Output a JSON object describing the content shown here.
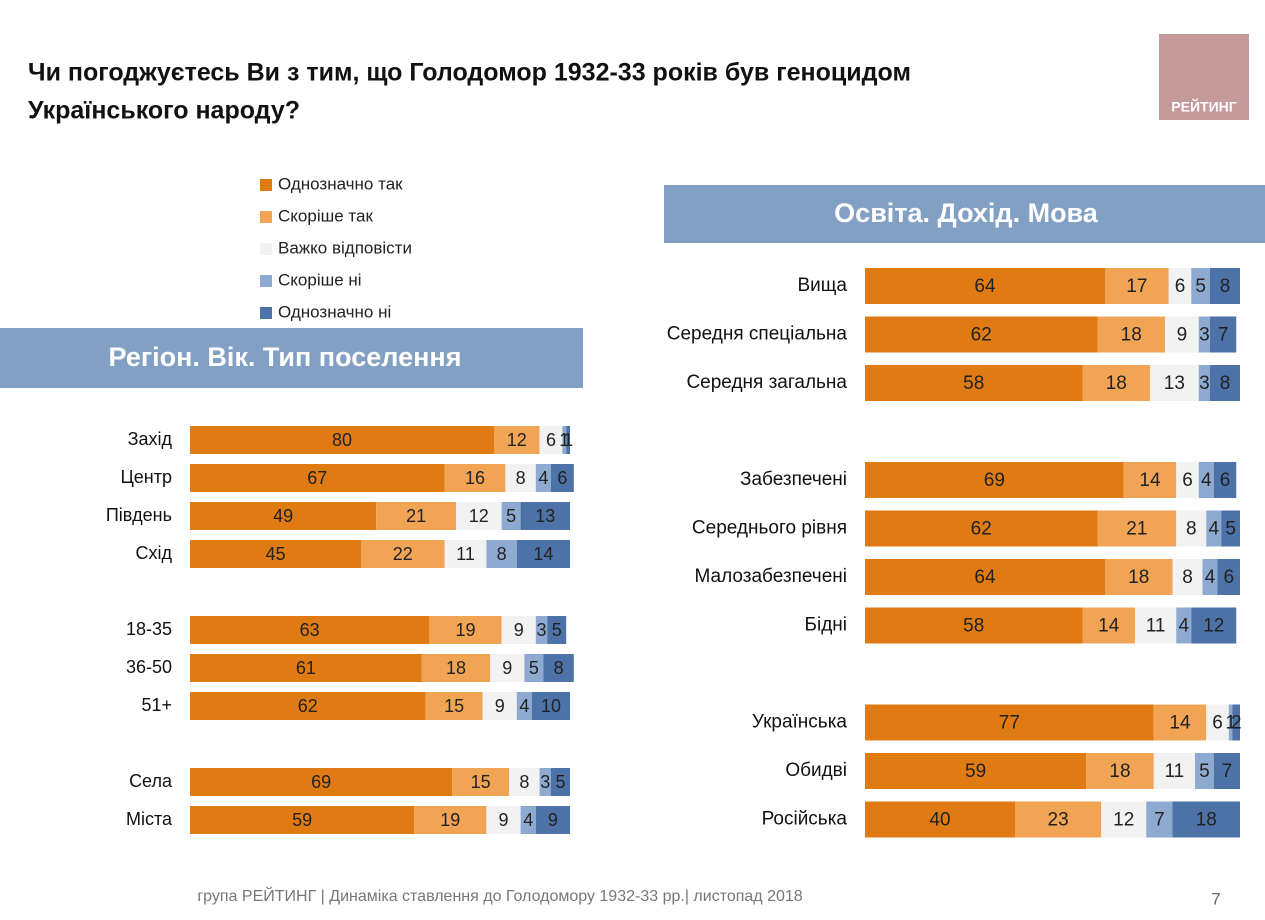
{
  "title": "Чи погоджуєтесь Ви з тим, що Голодомор 1932-33 років був геноцидом",
  "title_line2": "Українського народу?",
  "logo": "РЕЙТИНГ",
  "footer": "група РЕЙТИНГ  |  Динаміка ставлення до Голодомору 1932-33 рр.|  листопад  2018",
  "page_number": "7",
  "chart_data": [
    {
      "type": "stacked-bar-horizontal",
      "title": "Регіон. Вік. Тип поселення",
      "xlim": [
        0,
        100
      ],
      "categories": [
        "Захід",
        "Центр",
        "Південь",
        "Схід",
        null,
        "18-35",
        "36-50",
        "51+",
        null,
        "Села",
        "Міста"
      ],
      "series": [
        {
          "name": "Однозначно так",
          "color": "#e07b14",
          "values": [
            80,
            67,
            49,
            45,
            null,
            63,
            61,
            62,
            null,
            69,
            59
          ]
        },
        {
          "name": "Скоріше так",
          "color": "#f2a455",
          "values": [
            12,
            16,
            21,
            22,
            null,
            19,
            18,
            15,
            null,
            15,
            19
          ]
        },
        {
          "name": "Важко відповісти",
          "color": "#f2f2f2",
          "values": [
            6,
            8,
            12,
            11,
            null,
            9,
            9,
            9,
            null,
            8,
            9
          ]
        },
        {
          "name": "Скоріше ні",
          "color": "#8eaad0",
          "values": [
            1,
            4,
            5,
            8,
            null,
            3,
            5,
            4,
            null,
            3,
            4
          ]
        },
        {
          "name": "Однозначно ні",
          "color": "#4c72a8",
          "values": [
            1,
            6,
            13,
            14,
            null,
            5,
            8,
            10,
            null,
            5,
            9
          ]
        }
      ]
    },
    {
      "type": "stacked-bar-horizontal",
      "title": "Освіта. Дохід. Мова",
      "xlim": [
        0,
        100
      ],
      "categories": [
        "Вища",
        "Середня спеціальна",
        "Середня загальна",
        null,
        "Забезпечені",
        "Середнього рівня",
        "Малозабезпечені",
        "Бідні",
        null,
        "Українська",
        "Обидві",
        "Російська"
      ],
      "series": [
        {
          "color": "#e07b14",
          "values": [
            64,
            62,
            58,
            null,
            69,
            62,
            64,
            58,
            null,
            77,
            59,
            40
          ]
        },
        {
          "color": "#f2a455",
          "values": [
            17,
            18,
            18,
            null,
            14,
            21,
            18,
            14,
            null,
            14,
            18,
            23
          ]
        },
        {
          "color": "#f2f2f2",
          "values": [
            6,
            9,
            13,
            null,
            6,
            8,
            8,
            11,
            null,
            6,
            11,
            12
          ]
        },
        {
          "color": "#8eaad0",
          "values": [
            5,
            3,
            3,
            null,
            4,
            4,
            4,
            4,
            null,
            1,
            5,
            7
          ]
        },
        {
          "color": "#4c72a8",
          "values": [
            8,
            7,
            8,
            null,
            6,
            5,
            6,
            12,
            null,
            2,
            7,
            18
          ]
        }
      ]
    }
  ]
}
